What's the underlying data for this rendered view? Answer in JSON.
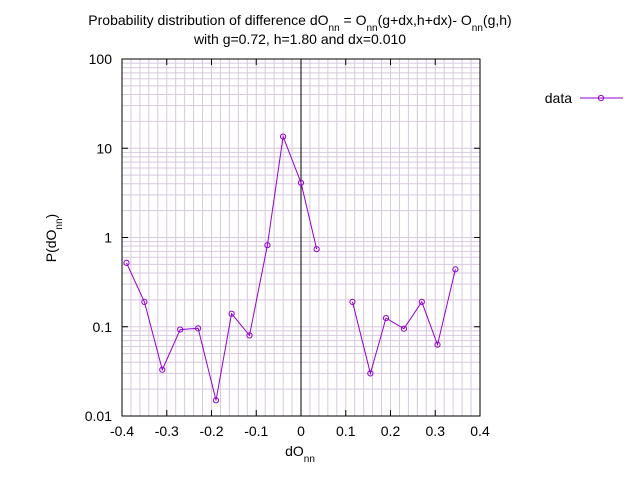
{
  "chart_data": {
    "type": "line",
    "title_line1_main": "Probability distribution of difference dO",
    "title_line1_sub1": "nn",
    "title_line1_mid": " = O",
    "title_line1_sub2": "nn",
    "title_line1_mid2": "(g+dx,h+dx)- O",
    "title_line1_sub3": "nn",
    "title_line1_end": "(g,h)",
    "title_line2": "with g=0.72, h=1.80 and dx=0.010",
    "xlabel_main": "dO",
    "xlabel_sub": "nn",
    "ylabel_main": "P(dO",
    "ylabel_sub": "nn",
    "ylabel_end": ")",
    "xlim": [
      -0.4,
      0.4
    ],
    "ylim": [
      0.01,
      100
    ],
    "yscale": "log",
    "grid": true,
    "legend_position": "top-right, outside plot",
    "x_ticks": [
      -0.4,
      -0.3,
      -0.2,
      -0.1,
      0,
      0.1,
      0.2,
      0.3,
      0.4
    ],
    "x_tick_labels": [
      "-0.4",
      "-0.3",
      "-0.2",
      "-0.1",
      "0",
      "0.1",
      "0.2",
      "0.3",
      "0.4"
    ],
    "y_ticks": [
      0.01,
      0.1,
      1,
      10,
      100
    ],
    "y_tick_labels": [
      "0.01",
      "0.1",
      "1",
      "10",
      "100"
    ],
    "series": [
      {
        "name": "data",
        "color": "#9400d3",
        "segments": [
          [
            {
              "x": -0.39,
              "y": 0.52
            },
            {
              "x": -0.35,
              "y": 0.19
            },
            {
              "x": -0.31,
              "y": 0.033
            },
            {
              "x": -0.27,
              "y": 0.093
            },
            {
              "x": -0.23,
              "y": 0.096
            },
            {
              "x": -0.19,
              "y": 0.015
            },
            {
              "x": -0.155,
              "y": 0.14
            },
            {
              "x": -0.115,
              "y": 0.08
            },
            {
              "x": -0.075,
              "y": 0.82
            },
            {
              "x": -0.04,
              "y": 13.5
            },
            {
              "x": 0.0,
              "y": 4.1
            },
            {
              "x": 0.035,
              "y": 0.74
            }
          ],
          [
            {
              "x": 0.115,
              "y": 0.19
            },
            {
              "x": 0.155,
              "y": 0.03
            },
            {
              "x": 0.19,
              "y": 0.125
            },
            {
              "x": 0.23,
              "y": 0.095
            },
            {
              "x": 0.27,
              "y": 0.19
            },
            {
              "x": 0.305,
              "y": 0.063
            },
            {
              "x": 0.345,
              "y": 0.44
            }
          ]
        ]
      }
    ]
  },
  "colors": {
    "series": "#9400d3",
    "grid": "#d8c8e0",
    "axis": "#000000",
    "zero_line": "#000000"
  }
}
